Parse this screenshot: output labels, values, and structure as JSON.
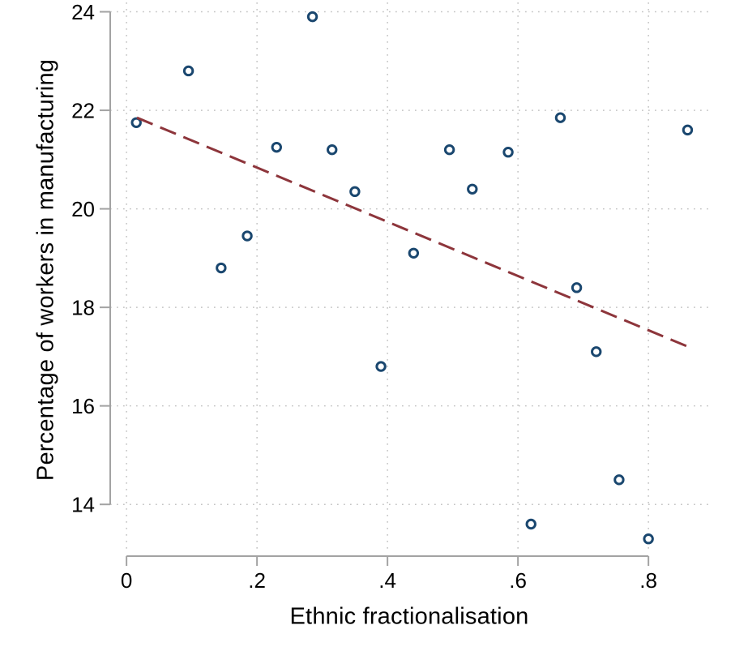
{
  "figure": {
    "background": "#ffffff"
  },
  "chart_data": {
    "type": "scatter",
    "title": "",
    "xlabel": "Ethnic fractionalisation",
    "ylabel": "Percentage of workers in manufacturing",
    "xlim": [
      -0.025,
      0.893
    ],
    "ylim": [
      12.95,
      24.19
    ],
    "x_ticks": {
      "values": [
        0,
        0.2,
        0.4,
        0.6,
        0.8
      ],
      "labels": [
        "0",
        ".2",
        ".4",
        ".6",
        ".8"
      ]
    },
    "y_ticks": {
      "values": [
        14,
        16,
        18,
        20,
        22,
        24
      ],
      "labels": [
        "14",
        "16",
        "18",
        "20",
        "22",
        "24"
      ]
    },
    "grid": "dotted gridlines at every x and y tick",
    "legend": "none",
    "series": [
      {
        "name": "observations",
        "type": "scatter",
        "marker": "hollow-circle",
        "color": "#1a476f",
        "points": [
          [
            0.015,
            21.75
          ],
          [
            0.095,
            22.8
          ],
          [
            0.145,
            18.8
          ],
          [
            0.185,
            19.45
          ],
          [
            0.23,
            21.25
          ],
          [
            0.285,
            23.9
          ],
          [
            0.315,
            21.2
          ],
          [
            0.35,
            20.35
          ],
          [
            0.39,
            16.8
          ],
          [
            0.44,
            19.1
          ],
          [
            0.495,
            21.2
          ],
          [
            0.53,
            20.4
          ],
          [
            0.585,
            21.15
          ],
          [
            0.62,
            13.6
          ],
          [
            0.665,
            21.85
          ],
          [
            0.69,
            18.4
          ],
          [
            0.72,
            17.1
          ],
          [
            0.755,
            14.5
          ],
          [
            0.8,
            13.3
          ],
          [
            0.86,
            21.6
          ]
        ]
      },
      {
        "name": "linear-fit",
        "type": "line",
        "style": "dashed",
        "color": "#8d353b",
        "x": [
          0.016,
          0.861
        ],
        "y": [
          21.85,
          17.2
        ]
      }
    ],
    "colors": {
      "marker": "#1a476f",
      "trend_line": "#8d353b",
      "axis": "#a3a3a3",
      "gridline": "#c3c3c3",
      "text": "#000000",
      "background": "#ffffff"
    }
  }
}
